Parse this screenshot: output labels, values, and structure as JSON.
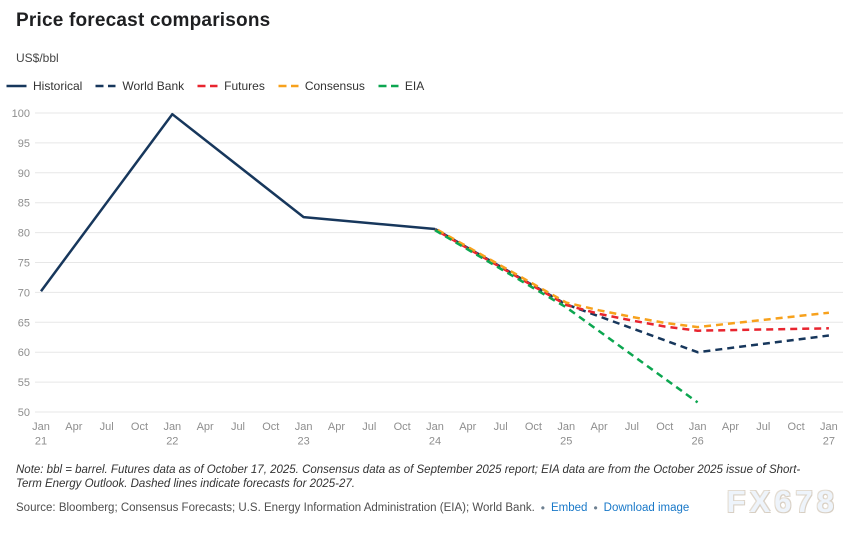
{
  "header": {
    "title": "Price forecast comparisons",
    "unit_label": "US$/bbl"
  },
  "legend": [
    {
      "label": "Historical",
      "color": "#17375c",
      "dashed": false
    },
    {
      "label": "World Bank",
      "color": "#17375c",
      "dashed": true
    },
    {
      "label": "Futures",
      "color": "#e8252f",
      "dashed": true
    },
    {
      "label": "Consensus",
      "color": "#f7a11c",
      "dashed": true
    },
    {
      "label": "EIA",
      "color": "#0ca650",
      "dashed": true
    }
  ],
  "chart_data": {
    "type": "line",
    "title": "Price forecast comparisons",
    "ylabel": "US$/bbl",
    "x_unit": "quarters from Jan 2021 (index 0) to Jan 2027 (index 24)",
    "ylim": [
      50,
      100
    ],
    "y_ticks": [
      50,
      55,
      60,
      65,
      70,
      75,
      80,
      85,
      90,
      95,
      100
    ],
    "grid": "horizontal",
    "legend_position": "top-left",
    "x_ticks": [
      {
        "m": "Jan",
        "y": "21"
      },
      {
        "m": "Apr"
      },
      {
        "m": "Jul"
      },
      {
        "m": "Oct"
      },
      {
        "m": "Jan",
        "y": "22"
      },
      {
        "m": "Apr"
      },
      {
        "m": "Jul"
      },
      {
        "m": "Oct"
      },
      {
        "m": "Jan",
        "y": "23"
      },
      {
        "m": "Apr"
      },
      {
        "m": "Jul"
      },
      {
        "m": "Oct"
      },
      {
        "m": "Jan",
        "y": "24"
      },
      {
        "m": "Apr"
      },
      {
        "m": "Jul"
      },
      {
        "m": "Oct"
      },
      {
        "m": "Jan",
        "y": "25"
      },
      {
        "m": "Apr"
      },
      {
        "m": "Jul"
      },
      {
        "m": "Oct"
      },
      {
        "m": "Jan",
        "y": "26"
      },
      {
        "m": "Apr"
      },
      {
        "m": "Jul"
      },
      {
        "m": "Oct"
      },
      {
        "m": "Jan",
        "y": "27"
      }
    ],
    "series": [
      {
        "name": "Historical",
        "color": "#17375c",
        "dashed": false,
        "points": [
          [
            0,
            70.2
          ],
          [
            4,
            99.8
          ],
          [
            8,
            82.6
          ],
          [
            12,
            80.6
          ]
        ]
      },
      {
        "name": "World Bank",
        "color": "#17375c",
        "dashed": true,
        "points": [
          [
            12,
            80.6
          ],
          [
            16,
            68.0
          ],
          [
            20,
            60.0
          ],
          [
            24,
            62.8
          ]
        ]
      },
      {
        "name": "Futures",
        "color": "#e8252f",
        "dashed": true,
        "points": [
          [
            12,
            80.5
          ],
          [
            16,
            67.9
          ],
          [
            17,
            66.4
          ],
          [
            18,
            65.3
          ],
          [
            19,
            64.3
          ],
          [
            20,
            63.6
          ],
          [
            22,
            63.8
          ],
          [
            24,
            64.0
          ]
        ]
      },
      {
        "name": "Consensus",
        "color": "#f7a11c",
        "dashed": true,
        "points": [
          [
            12,
            80.7
          ],
          [
            16,
            68.3
          ],
          [
            17,
            67.0
          ],
          [
            18,
            65.9
          ],
          [
            19,
            64.9
          ],
          [
            20,
            64.2
          ],
          [
            21,
            64.8
          ],
          [
            22,
            65.4
          ],
          [
            23,
            66.0
          ],
          [
            24,
            66.6
          ]
        ]
      },
      {
        "name": "EIA",
        "color": "#0ca650",
        "dashed": true,
        "points": [
          [
            12,
            80.4
          ],
          [
            16,
            67.5
          ],
          [
            20,
            51.6
          ]
        ]
      }
    ]
  },
  "footer": {
    "note_lines": [
      "Note: bbl = barrel. Futures data as of October 17, 2025. Consensus data as of September 2025 report; EIA data are from the October 2025 issue of Short-",
      "Term Energy Outlook. Dashed lines indicate forecasts for 2025-27."
    ],
    "source": "Source: Bloomberg; Consensus Forecasts; U.S. Energy Information Administration (EIA); World Bank.",
    "bullet": "•",
    "links": [
      {
        "label": "Embed"
      },
      {
        "label": "Download image"
      }
    ],
    "watermark": "FX678",
    "link_color": "#1878c8"
  }
}
